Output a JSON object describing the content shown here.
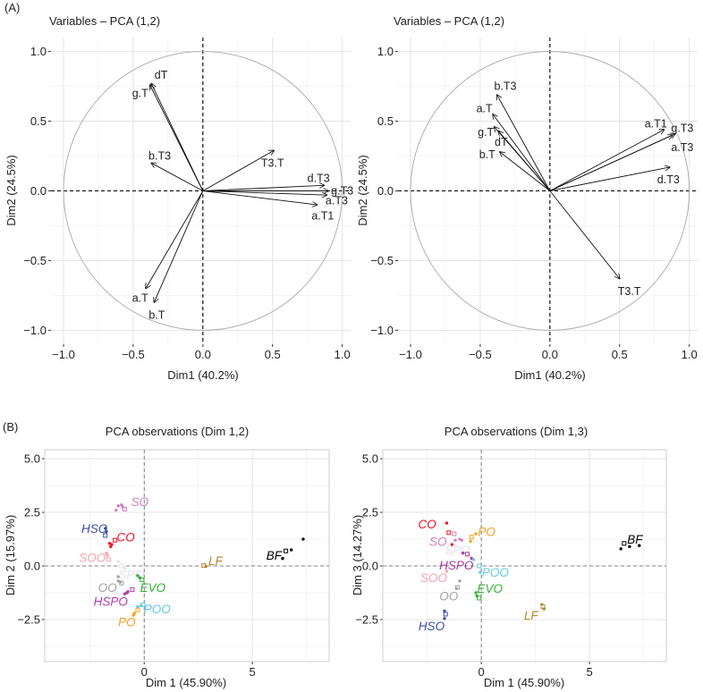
{
  "panel_labels": {
    "a": "(A)",
    "b": "(B)"
  },
  "chart_data": [
    {
      "type": "biplot-variables",
      "title": "Variables – PCA (1,2)",
      "xlabel": "Dim1 (40.2%)",
      "ylabel": "Dim2 (24.5%)",
      "xlim": [
        -1.09,
        1.06
      ],
      "ylim": [
        -1.1,
        1.1
      ],
      "xticks": [
        -1,
        -0.5,
        0,
        0.5,
        1
      ],
      "xtick_labels": [
        "−1.0",
        "−0.5",
        "0.0",
        "0.5",
        "1.0"
      ],
      "yticks": [
        -1,
        -0.5,
        0,
        0.5,
        1
      ],
      "ytick_labels": [
        "−1.0",
        "−0.5",
        "0.0",
        "0.5",
        "1.0"
      ],
      "grid": true,
      "vectors": [
        {
          "name": "dT",
          "x": -0.37,
          "y": 0.77,
          "lx": -0.3,
          "ly": 0.83
        },
        {
          "name": "g.T",
          "x": -0.38,
          "y": 0.76,
          "lx": -0.45,
          "ly": 0.7
        },
        {
          "name": "b.T3",
          "x": -0.37,
          "y": 0.2,
          "lx": -0.31,
          "ly": 0.25
        },
        {
          "name": "T3.T",
          "x": 0.51,
          "y": 0.29,
          "lx": 0.5,
          "ly": 0.2
        },
        {
          "name": "d.T3",
          "x": 0.87,
          "y": 0.04,
          "lx": 0.83,
          "ly": 0.09
        },
        {
          "name": "g.T3",
          "x": 0.9,
          "y": 0.0,
          "lx": 1.0,
          "ly": 0.0
        },
        {
          "name": "a.T3",
          "x": 0.89,
          "y": -0.03,
          "lx": 0.96,
          "ly": -0.07
        },
        {
          "name": "a.T1",
          "x": 0.82,
          "y": -0.1,
          "lx": 0.86,
          "ly": -0.18
        },
        {
          "name": "a.T",
          "x": -0.41,
          "y": -0.7,
          "lx": -0.45,
          "ly": -0.77
        },
        {
          "name": "b.T",
          "x": -0.35,
          "y": -0.8,
          "lx": -0.33,
          "ly": -0.89
        }
      ]
    },
    {
      "type": "biplot-variables",
      "title": "Variables – PCA (1,2)",
      "xlabel": "Dim1 (40.2%)",
      "ylabel": "Dim2 (24.5%)",
      "xlim": [
        -1.09,
        1.06
      ],
      "ylim": [
        -1.1,
        1.1
      ],
      "xticks": [
        -1,
        -0.5,
        0,
        0.5,
        1
      ],
      "xtick_labels": [
        "−1.0",
        "−0.5",
        "0.0",
        "0.5",
        "1.0"
      ],
      "yticks": [
        -1,
        -0.5,
        0,
        0.5,
        1
      ],
      "ytick_labels": [
        "−1.0",
        "−0.5",
        "0.0",
        "0.5",
        "1.0"
      ],
      "grid": true,
      "vectors": [
        {
          "name": "b.T3",
          "x": -0.38,
          "y": 0.69,
          "lx": -0.32,
          "ly": 0.75
        },
        {
          "name": "a.T",
          "x": -0.41,
          "y": 0.55,
          "lx": -0.47,
          "ly": 0.59
        },
        {
          "name": "g.T",
          "x": -0.4,
          "y": 0.46,
          "lx": -0.46,
          "ly": 0.42
        },
        {
          "name": "dT",
          "x": -0.37,
          "y": 0.43,
          "lx": -0.35,
          "ly": 0.35
        },
        {
          "name": "b.T",
          "x": -0.36,
          "y": 0.28,
          "lx": -0.45,
          "ly": 0.26
        },
        {
          "name": "a.T1",
          "x": 0.82,
          "y": 0.44,
          "lx": 0.76,
          "ly": 0.48
        },
        {
          "name": "g.T3",
          "x": 0.9,
          "y": 0.41,
          "lx": 0.95,
          "ly": 0.45
        },
        {
          "name": "a.T3",
          "x": 0.88,
          "y": 0.4,
          "lx": 0.95,
          "ly": 0.31
        },
        {
          "name": "d.T3",
          "x": 0.86,
          "y": 0.17,
          "lx": 0.85,
          "ly": 0.08
        },
        {
          "name": "T3.T",
          "x": 0.5,
          "y": -0.63,
          "lx": 0.57,
          "ly": -0.72
        }
      ]
    },
    {
      "type": "scatter",
      "title": "PCA observations (Dim 1,2)",
      "xlabel": "Dim 1 (45.90%)",
      "ylabel": "Dim 2 (15.97%)",
      "xlim": [
        -4.6,
        8.55
      ],
      "ylim": [
        -4.46,
        5.42
      ],
      "xticks": [
        0,
        5
      ],
      "xtick_labels": [
        "0",
        "5"
      ],
      "yticks": [
        -2.5,
        0,
        2.5,
        5
      ],
      "ytick_labels": [
        "−2.5",
        "0.0",
        "2.5",
        "5.0"
      ],
      "minor_x": [
        -2.5,
        2.5,
        7.5
      ],
      "minor_y": [
        -3.75,
        -1.25,
        1.25,
        3.75
      ],
      "grid": true,
      "groups": [
        {
          "name": "SO",
          "color": "#d27fc2",
          "points": [
            [
              -1.2,
              2.8
            ],
            [
              -0.9,
              2.65
            ],
            [
              -1.3,
              2.6
            ],
            [
              -1.05,
              2.85
            ],
            [
              -1.0,
              2.75
            ]
          ],
          "label": [
            -0.2,
            3.0
          ]
        },
        {
          "name": "HSO",
          "color": "#3b4ea6",
          "points": [
            [
              -1.8,
              1.75
            ],
            [
              -1.8,
              1.42
            ],
            [
              -1.75,
              1.6
            ]
          ],
          "label": [
            -2.3,
            1.75
          ]
        },
        {
          "name": "CO",
          "color": "#f0121f",
          "points": [
            [
              -1.6,
              1.05
            ],
            [
              -1.35,
              1.2
            ],
            [
              -1.55,
              0.9
            ],
            [
              -1.5,
              1.0
            ]
          ],
          "label": [
            -0.85,
            1.35
          ]
        },
        {
          "name": "SOO",
          "color": "#f6a3b3",
          "points": [
            [
              -1.7,
              0.5
            ],
            [
              -1.65,
              0.3
            ],
            [
              -1.75,
              0.6
            ]
          ],
          "label": [
            -2.4,
            0.4
          ]
        },
        {
          "name": "SPO",
          "color": "#e2e2f2",
          "points": [
            [
              -1.2,
              0.2
            ],
            [
              -1.05,
              0.0
            ],
            [
              -0.9,
              -0.1
            ]
          ],
          "label": [
            -0.6,
            -0.4
          ]
        },
        {
          "name": "OO",
          "color": "#a3a3a3",
          "points": [
            [
              -1.2,
              -0.5
            ],
            [
              -1.05,
              -0.8
            ],
            [
              -1.2,
              -0.7
            ],
            [
              -1.1,
              -0.75
            ]
          ],
          "label": [
            -1.7,
            -1.0
          ]
        },
        {
          "name": "HSPO",
          "color": "#b03ca2",
          "points": [
            [
              -0.8,
              -1.25
            ],
            [
              -0.55,
              -1.1
            ],
            [
              -0.9,
              -1.3
            ],
            [
              -0.75,
              -1.2
            ]
          ],
          "label": [
            -1.55,
            -1.65
          ]
        },
        {
          "name": "EVO",
          "color": "#34b034",
          "points": [
            [
              -0.3,
              -0.45
            ],
            [
              -0.1,
              -0.65
            ],
            [
              -0.2,
              -0.55
            ]
          ],
          "label": [
            0.4,
            -1.0
          ]
        },
        {
          "name": "POO",
          "color": "#62c9e2",
          "points": [
            [
              -0.3,
              -1.9
            ],
            [
              -0.05,
              -1.8
            ],
            [
              -0.15,
              -1.85
            ]
          ],
          "label": [
            0.6,
            -2.0
          ]
        },
        {
          "name": "PO",
          "color": "#f6a121",
          "points": [
            [
              -0.45,
              -2.2
            ],
            [
              -0.3,
              -2.05
            ],
            [
              -0.5,
              -2.3
            ]
          ],
          "label": [
            -0.8,
            -2.6
          ]
        },
        {
          "name": "LF",
          "color": "#b8862a",
          "points": [
            [
              2.8,
              0.0
            ],
            [
              2.75,
              0.02
            ],
            [
              2.85,
              -0.02
            ]
          ],
          "label": [
            3.3,
            0.25
          ]
        },
        {
          "name": "BF",
          "color": "#000000",
          "points": [
            [
              6.4,
              0.35
            ],
            [
              6.55,
              0.7
            ],
            [
              7.35,
              1.25
            ],
            [
              6.8,
              0.75
            ]
          ],
          "label": [
            6.0,
            0.5
          ]
        }
      ]
    },
    {
      "type": "scatter",
      "title": "PCA observations (Dim 1,3)",
      "xlabel": "Dim 1 (45.90%)",
      "ylabel": "Dim 3 (14.27%)",
      "xlim": [
        -4.55,
        8.55
      ],
      "ylim": [
        -4.46,
        5.42
      ],
      "xticks": [
        0,
        5
      ],
      "xtick_labels": [
        "0",
        "5"
      ],
      "yticks": [
        -2.5,
        0,
        2.5,
        5
      ],
      "ytick_labels": [
        "−2.5",
        "0.0",
        "2.5",
        "5.0"
      ],
      "minor_x": [
        -2.5,
        2.5,
        7.5
      ],
      "minor_y": [
        -3.75,
        -1.25,
        1.25,
        3.75
      ],
      "grid": true,
      "groups": [
        {
          "name": "CO",
          "color": "#f0121f",
          "points": [
            [
              -1.6,
              2.0
            ],
            [
              -1.5,
              1.55
            ],
            [
              -1.35,
              1.0
            ]
          ],
          "label": [
            -2.5,
            1.95
          ]
        },
        {
          "name": "SO",
          "color": "#d27fc2",
          "points": [
            [
              -1.2,
              1.2
            ],
            [
              -1.25,
              1.5
            ],
            [
              -0.9,
              1.2
            ],
            [
              -1.0,
              1.25
            ]
          ],
          "label": [
            -2.0,
            1.15
          ]
        },
        {
          "name": "PO",
          "color": "#f6a121",
          "points": [
            [
              -0.5,
              1.15
            ],
            [
              -0.45,
              1.35
            ],
            [
              -0.25,
              1.5
            ]
          ],
          "label": [
            0.25,
            1.6
          ]
        },
        {
          "name": "SPO",
          "color": "#e2e2f2",
          "points": [
            [
              -0.7,
              0.6
            ],
            [
              -0.6,
              0.5
            ],
            [
              -0.5,
              0.45
            ]
          ],
          "label": [
            -1.1,
            0.75
          ]
        },
        {
          "name": "HSPO",
          "color": "#b03ca2",
          "points": [
            [
              -0.85,
              0.6
            ],
            [
              -0.65,
              0.55
            ],
            [
              -0.45,
              0.35
            ]
          ],
          "label": [
            -1.15,
            0.05
          ]
        },
        {
          "name": "POO",
          "color": "#62c9e2",
          "points": [
            [
              -0.35,
              0.3
            ],
            [
              -0.1,
              0.0
            ],
            [
              -0.05,
              -0.3
            ]
          ],
          "label": [
            0.65,
            -0.3
          ]
        },
        {
          "name": "SOO",
          "color": "#f6a3b3",
          "points": [
            [
              -1.6,
              -0.25
            ]
          ],
          "label": [
            -2.2,
            -0.55
          ]
        },
        {
          "name": "OO",
          "color": "#a3a3a3",
          "points": [
            [
              -1.0,
              -0.7
            ],
            [
              -1.1,
              -1.0
            ],
            [
              -1.15,
              -1.05
            ]
          ],
          "label": [
            -1.5,
            -1.4
          ]
        },
        {
          "name": "EVO",
          "color": "#34b034",
          "points": [
            [
              -0.25,
              -1.25
            ],
            [
              -0.1,
              -1.5
            ],
            [
              -0.2,
              -1.4
            ]
          ],
          "label": [
            0.4,
            -1.05
          ]
        },
        {
          "name": "HSO",
          "color": "#3b4ea6",
          "points": [
            [
              -1.7,
              -2.1
            ],
            [
              -1.65,
              -2.25
            ],
            [
              -1.7,
              -2.45
            ]
          ],
          "label": [
            -2.3,
            -2.8
          ]
        },
        {
          "name": "LF",
          "color": "#b8862a",
          "points": [
            [
              2.8,
              -1.8
            ],
            [
              2.85,
              -1.9
            ],
            [
              2.9,
              -2.0
            ]
          ],
          "label": [
            2.3,
            -2.3
          ]
        },
        {
          "name": "BF",
          "color": "#000000",
          "points": [
            [
              6.45,
              0.8
            ],
            [
              6.6,
              1.05
            ],
            [
              6.85,
              0.9
            ],
            [
              7.3,
              0.95
            ]
          ],
          "label": [
            7.1,
            1.25
          ]
        }
      ]
    }
  ]
}
